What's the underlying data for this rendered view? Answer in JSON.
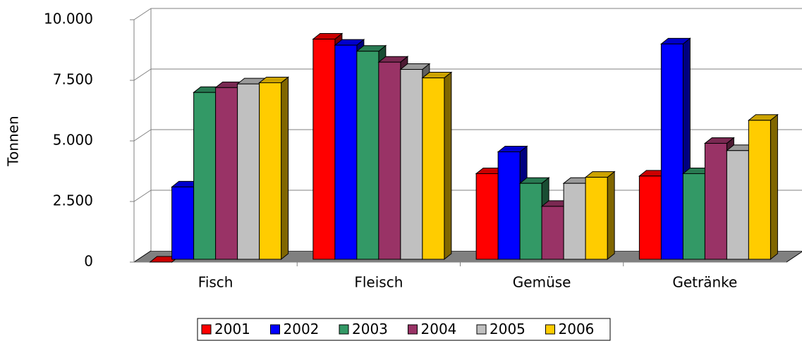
{
  "chart_data": {
    "type": "bar3d",
    "y_label": "Tonnen",
    "categories": [
      "Fisch",
      "Fleisch",
      "Gemüse",
      "Getränke"
    ],
    "series": [
      {
        "name": "2001",
        "color": "#ff0000",
        "values": [
          0,
          9200,
          3650,
          3550
        ]
      },
      {
        "name": "2002",
        "color": "#0000ff",
        "values": [
          3100,
          8950,
          4550,
          9000
        ]
      },
      {
        "name": "2003",
        "color": "#339966",
        "values": [
          7000,
          8700,
          3250,
          3650
        ]
      },
      {
        "name": "2004",
        "color": "#993366",
        "values": [
          7200,
          8250,
          2300,
          4900
        ]
      },
      {
        "name": "2005",
        "color": "#c0c0c0",
        "values": [
          7350,
          7950,
          3250,
          4600
        ]
      },
      {
        "name": "2006",
        "color": "#ffcc00",
        "values": [
          7400,
          7600,
          3500,
          5850
        ]
      }
    ],
    "ylim": [
      0,
      10000
    ],
    "yticks": [
      0,
      {
        "value": 2500,
        "label": "2.500"
      },
      {
        "value": 5000,
        "label": "5.000"
      },
      {
        "value": 7500,
        "label": "7.500"
      },
      {
        "value": 10000,
        "label": "10.000"
      }
    ],
    "grid": true,
    "legend": "bottom"
  }
}
